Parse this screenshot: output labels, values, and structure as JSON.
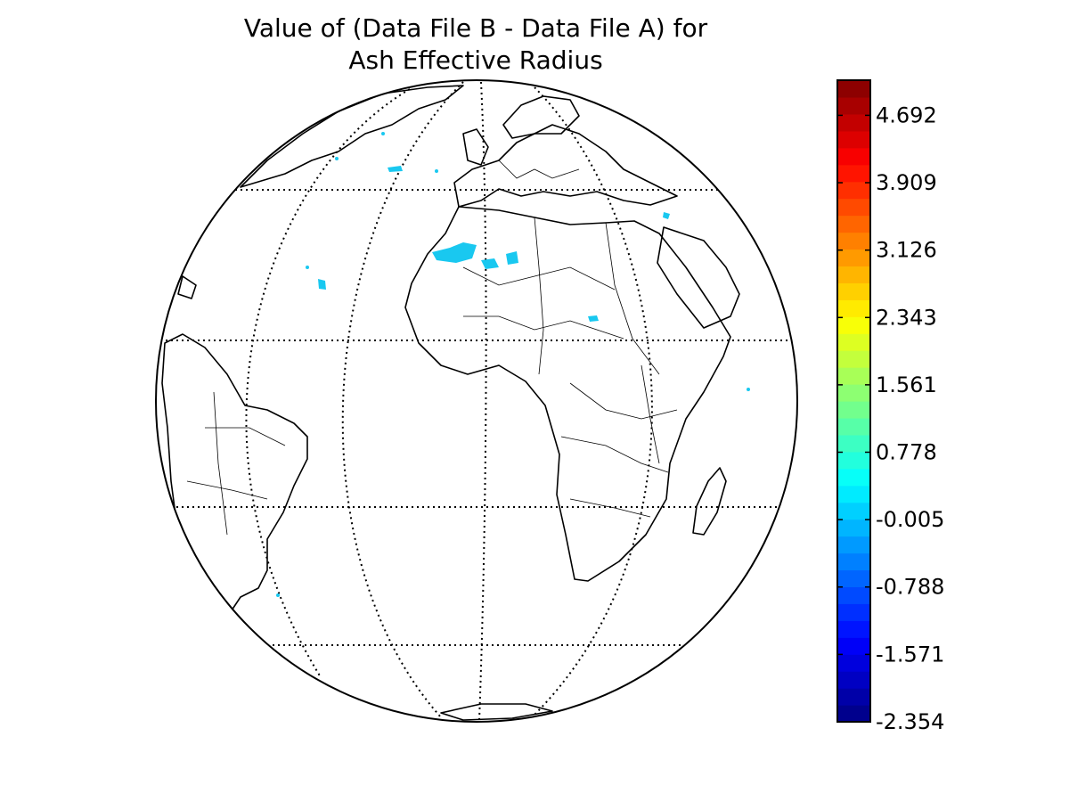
{
  "title": {
    "line1": "Value of (Data File B - Data File A) for",
    "line2": "Ash Effective Radius"
  },
  "colorbar": {
    "ticks": [
      "4.692",
      "3.909",
      "3.126",
      "2.343",
      "1.561",
      "0.778",
      "-0.005",
      "-0.788",
      "-1.571",
      "-2.354"
    ],
    "colormap": "jet",
    "range": [
      -2.354,
      5.1
    ]
  },
  "map": {
    "projection": "orthographic",
    "graticule": "dotted",
    "highlight_color": "#19c8f0"
  }
}
